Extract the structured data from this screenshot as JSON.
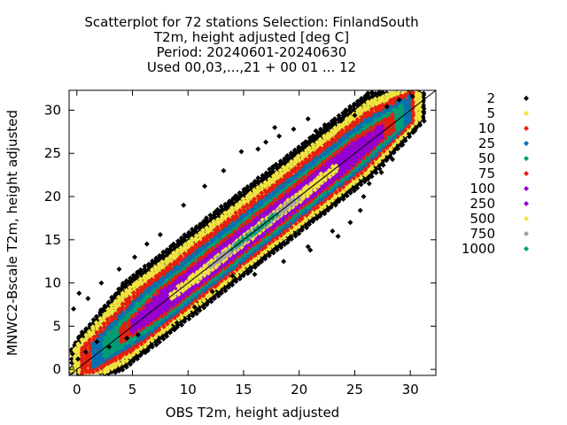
{
  "chart_data": {
    "type": "scatter",
    "title": [
      "Scatterplot for   72 stations Selection: FinlandSouth",
      "T2m, height adjusted [deg C]",
      "Period: 20240601-20240630",
      "Used 00,03,...,21 + 00 01 ... 12"
    ],
    "xlabel": "OBS T2m, height adjusted",
    "ylabel": "MNWC2-Bscale T2m, height adjusted",
    "xlim": [
      -0.7,
      32.3
    ],
    "ylim": [
      -0.7,
      32.3
    ],
    "xticks": [
      0,
      5,
      10,
      15,
      20,
      25,
      30
    ],
    "yticks": [
      0,
      5,
      10,
      15,
      20,
      25,
      30
    ],
    "diagonal": true,
    "legend_position": "right",
    "density_levels": [
      {
        "label": "2",
        "min_count": 2,
        "color": "#000000"
      },
      {
        "label": "5",
        "min_count": 5,
        "color": "#f0e442"
      },
      {
        "label": "10",
        "min_count": 10,
        "color": "#e51e10"
      },
      {
        "label": "25",
        "min_count": 25,
        "color": "#0072b2"
      },
      {
        "label": "50",
        "min_count": 50,
        "color": "#009e73"
      },
      {
        "label": "75",
        "min_count": 75,
        "color": "#e51e10"
      },
      {
        "label": "100",
        "min_count": 100,
        "color": "#9400d3"
      },
      {
        "label": "250",
        "min_count": 250,
        "color": "#9400d3"
      },
      {
        "label": "500",
        "min_count": 500,
        "color": "#f0e442"
      },
      {
        "label": "750",
        "min_count": 750,
        "color": "#a0a0a0"
      },
      {
        "label": "1000",
        "min_count": 1000,
        "color": "#009e73"
      }
    ],
    "bands": [
      {
        "level": "2",
        "x_from": -0.5,
        "x_to": 31.5,
        "offset_low": -4.2,
        "offset_high": 6.0
      },
      {
        "level": "5",
        "x_from": -0.5,
        "x_to": 31.0,
        "offset_low": -3.4,
        "offset_high": 4.8
      },
      {
        "level": "10",
        "x_from": 0.5,
        "x_to": 30.5,
        "offset_low": -2.8,
        "offset_high": 3.8
      },
      {
        "level": "25",
        "x_from": 1.5,
        "x_to": 30.0,
        "offset_low": -2.3,
        "offset_high": 3.0
      },
      {
        "level": "50",
        "x_from": 2.5,
        "x_to": 29.5,
        "offset_low": -1.9,
        "offset_high": 2.4
      },
      {
        "level": "75",
        "x_from": 4.0,
        "x_to": 28.5,
        "offset_low": -1.5,
        "offset_high": 1.9
      },
      {
        "level": "100",
        "x_from": 5.0,
        "x_to": 27.5,
        "offset_low": -1.2,
        "offset_high": 1.5
      },
      {
        "level": "250",
        "x_from": 7.0,
        "x_to": 25.5,
        "offset_low": -0.9,
        "offset_high": 1.1
      },
      {
        "level": "500",
        "x_from": 8.5,
        "x_to": 23.5,
        "offset_low": -0.6,
        "offset_high": 0.7
      },
      {
        "level": "750",
        "x_from": 12.0,
        "x_to": 20.0,
        "offset_low": -0.35,
        "offset_high": 0.4
      },
      {
        "level": "1000",
        "x_from": 14.0,
        "x_to": 18.0,
        "offset_low": -0.15,
        "offset_high": 0.2
      }
    ],
    "outliers": [
      {
        "x": 16.3,
        "y": 25.5
      },
      {
        "x": 17.0,
        "y": 26.3
      },
      {
        "x": 18.2,
        "y": 27.0
      },
      {
        "x": 19.5,
        "y": 27.8
      },
      {
        "x": 20.8,
        "y": 29.0
      },
      {
        "x": 21.5,
        "y": 27.6
      },
      {
        "x": 22.3,
        "y": 28.3
      },
      {
        "x": 14.8,
        "y": 25.2
      },
      {
        "x": 17.8,
        "y": 28.0
      },
      {
        "x": 13.2,
        "y": 23.0
      },
      {
        "x": 11.5,
        "y": 21.2
      },
      {
        "x": 9.6,
        "y": 19.0
      },
      {
        "x": 7.5,
        "y": 15.6
      },
      {
        "x": 6.3,
        "y": 14.5
      },
      {
        "x": 5.2,
        "y": 13.0
      },
      {
        "x": 3.8,
        "y": 11.6
      },
      {
        "x": 2.2,
        "y": 10.0
      },
      {
        "x": 1.0,
        "y": 8.2
      },
      {
        "x": -0.3,
        "y": 7.0
      },
      {
        "x": 0.2,
        "y": 8.8
      },
      {
        "x": 0.8,
        "y": 2.0
      },
      {
        "x": 1.8,
        "y": 3.2
      },
      {
        "x": 2.9,
        "y": 2.6
      },
      {
        "x": 4.5,
        "y": 3.6
      },
      {
        "x": 5.5,
        "y": 4.0
      },
      {
        "x": -0.4,
        "y": 1.8
      },
      {
        "x": 0.1,
        "y": 1.2
      },
      {
        "x": 9.0,
        "y": 5.4
      },
      {
        "x": 10.6,
        "y": 7.2
      },
      {
        "x": 12.2,
        "y": 9.0
      },
      {
        "x": 14.0,
        "y": 10.8
      },
      {
        "x": 16.0,
        "y": 11.0
      },
      {
        "x": 18.6,
        "y": 12.5
      },
      {
        "x": 20.8,
        "y": 14.2
      },
      {
        "x": 23.0,
        "y": 16.0
      },
      {
        "x": 24.6,
        "y": 17.0
      },
      {
        "x": 25.5,
        "y": 18.4
      },
      {
        "x": 25.8,
        "y": 20.0
      },
      {
        "x": 26.3,
        "y": 21.5
      },
      {
        "x": 27.4,
        "y": 22.8
      },
      {
        "x": 28.4,
        "y": 24.3
      },
      {
        "x": 29.3,
        "y": 26.0
      },
      {
        "x": 30.4,
        "y": 27.6
      },
      {
        "x": 31.2,
        "y": 29.8
      },
      {
        "x": 30.2,
        "y": 31.6
      },
      {
        "x": 29.0,
        "y": 31.2
      },
      {
        "x": 25.0,
        "y": 29.4
      },
      {
        "x": 23.8,
        "y": 28.8
      },
      {
        "x": 27.9,
        "y": 30.4
      },
      {
        "x": 21.0,
        "y": 13.8
      },
      {
        "x": 23.5,
        "y": 15.4
      }
    ]
  }
}
